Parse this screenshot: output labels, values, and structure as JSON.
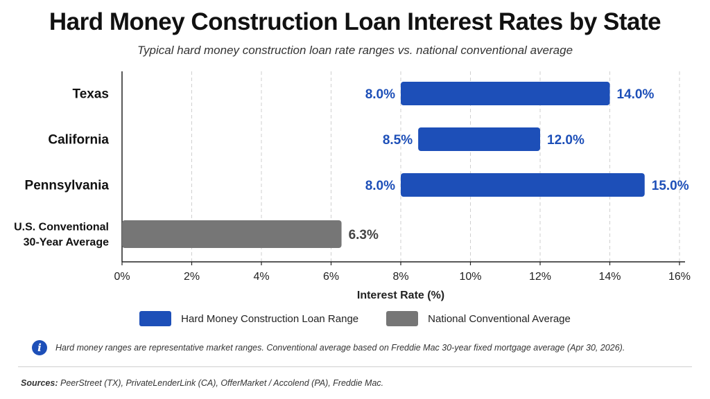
{
  "title": "Hard Money Construction Loan Interest Rates by State",
  "subtitle": "Typical hard money construction loan rate ranges vs. national conventional average",
  "colors": {
    "hard_money": "#1d4fb8",
    "conventional": "#767676",
    "label_blue": "#1d4fb8",
    "label_gray": "#444444"
  },
  "legend": {
    "hard_money": "Hard Money Construction Loan Range",
    "conventional": "National Conventional Average"
  },
  "note": {
    "icon": "info-icon",
    "text": "Hard money ranges are representative market ranges. Conventional average based on Freddie Mac 30-year fixed mortgage average (Apr 30, 2026)."
  },
  "sources": {
    "label": "Sources:",
    "text": "PeerStreet (TX), PrivateLenderLink (CA), OfferMarket / Accolend (PA), Freddie Mac."
  },
  "chart_data": {
    "type": "bar",
    "orientation": "horizontal",
    "xlabel": "Interest Rate (%)",
    "xlim": [
      0,
      16
    ],
    "xticks": [
      0,
      2,
      4,
      6,
      8,
      10,
      12,
      14,
      16
    ],
    "xtick_labels": [
      "0%",
      "2%",
      "4%",
      "6%",
      "8%",
      "10%",
      "12%",
      "14%",
      "16%"
    ],
    "grid": "vertical dashed",
    "legend_position": "bottom",
    "categories": [
      "Texas",
      "California",
      "Pennsylvania",
      "U.S. Conventional 30-Year Average"
    ],
    "series": [
      {
        "name": "Hard Money Construction Loan Range",
        "ranges": [
          {
            "category": "Texas",
            "low": 8.0,
            "high": 14.0,
            "low_label": "8.0%",
            "high_label": "14.0%"
          },
          {
            "category": "California",
            "low": 8.5,
            "high": 12.0,
            "low_label": "8.5%",
            "high_label": "12.0%"
          },
          {
            "category": "Pennsylvania",
            "low": 8.0,
            "high": 15.0,
            "low_label": "8.0%",
            "high_label": "15.0%"
          }
        ]
      },
      {
        "name": "National Conventional Average",
        "values": [
          {
            "category": "U.S. Conventional 30-Year Average",
            "value": 6.3,
            "label": "6.3%"
          }
        ]
      }
    ],
    "category_labels": [
      [
        "Texas"
      ],
      [
        "California"
      ],
      [
        "Pennsylvania"
      ],
      [
        "U.S. Conventional",
        "30-Year Average"
      ]
    ]
  }
}
